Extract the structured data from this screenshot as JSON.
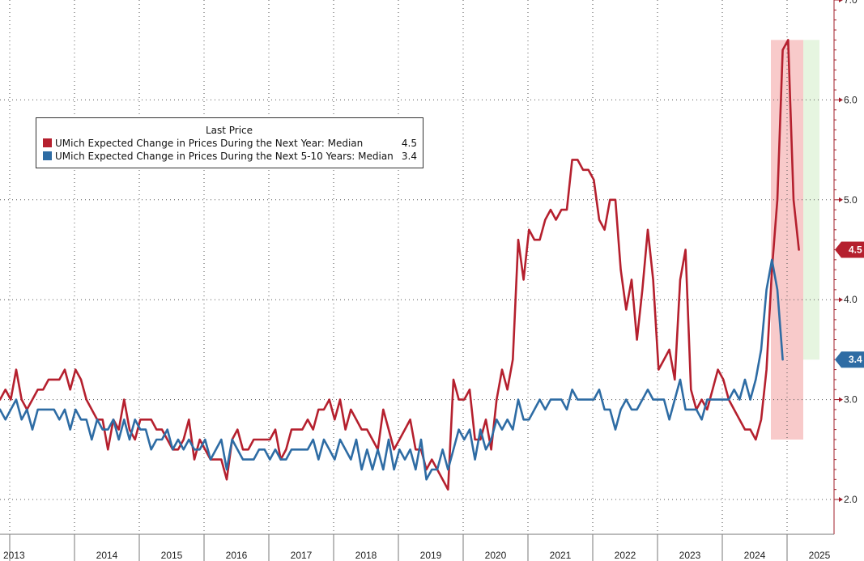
{
  "chart_data": {
    "type": "line",
    "title": "",
    "xlabel": "",
    "ylabel": "",
    "ylim": [
      1.8,
      7.0
    ],
    "y_ticks": [
      {
        "value": 2.0,
        "label": "2.0"
      },
      {
        "value": 3.0,
        "label": "3.0"
      },
      {
        "value": 4.0,
        "label": "4.0"
      },
      {
        "value": 5.0,
        "label": "5.0"
      },
      {
        "value": 6.0,
        "label": "6.0"
      },
      {
        "value": 7.0,
        "label": "7.0"
      }
    ],
    "x_start": 2012.85,
    "x_end": 2025.6,
    "x_labels": [
      "2013",
      "2014",
      "2015",
      "2016",
      "2017",
      "2018",
      "2019",
      "2020",
      "2021",
      "2022",
      "2023",
      "2024",
      "2025"
    ],
    "grid": true,
    "legend": {
      "title": "Last Price",
      "placement": "top-left",
      "entries": [
        {
          "name": "UMich Expected Change in Prices During the Next Year: Median",
          "last": "4.5",
          "color": "#b5202e"
        },
        {
          "name": "UMich Expected Change in Prices During the Next 5-10 Years: Median",
          "last": "3.4",
          "color": "#2e6ca4"
        }
      ]
    },
    "shaded_regions": [
      {
        "from": 2024.75,
        "to": 2025.25,
        "ymin": 2.6,
        "ymax": 6.6,
        "color": "#f6b8b8"
      },
      {
        "from": 2025.25,
        "to": 2025.5,
        "ymin": 3.4,
        "ymax": 6.6,
        "color": "#ddf2d6"
      }
    ],
    "series": [
      {
        "name": "UMich Expected Change in Prices During the Next Year: Median",
        "color": "#b5202e",
        "x_start": 2012.85,
        "step": 0.08333,
        "values": [
          3.0,
          3.1,
          3.0,
          3.3,
          3.0,
          2.9,
          3.0,
          3.1,
          3.1,
          3.2,
          3.2,
          3.2,
          3.3,
          3.1,
          3.3,
          3.2,
          3.0,
          2.9,
          2.8,
          2.8,
          2.5,
          2.8,
          2.7,
          3.0,
          2.7,
          2.6,
          2.8,
          2.8,
          2.8,
          2.7,
          2.7,
          2.6,
          2.5,
          2.5,
          2.6,
          2.8,
          2.4,
          2.6,
          2.5,
          2.4,
          2.4,
          2.4,
          2.2,
          2.6,
          2.7,
          2.5,
          2.5,
          2.6,
          2.6,
          2.6,
          2.6,
          2.7,
          2.4,
          2.5,
          2.7,
          2.7,
          2.7,
          2.8,
          2.7,
          2.9,
          2.9,
          3.0,
          2.8,
          3.0,
          2.7,
          2.9,
          2.8,
          2.7,
          2.7,
          2.6,
          2.5,
          2.9,
          2.7,
          2.5,
          2.6,
          2.7,
          2.8,
          2.5,
          2.5,
          2.3,
          2.4,
          2.3,
          2.2,
          2.1,
          3.2,
          3.0,
          3.0,
          3.1,
          2.6,
          2.6,
          2.8,
          2.5,
          3.0,
          3.3,
          3.1,
          3.4,
          4.6,
          4.2,
          4.7,
          4.6,
          4.6,
          4.8,
          4.9,
          4.8,
          4.9,
          4.9,
          5.4,
          5.4,
          5.3,
          5.3,
          5.2,
          4.8,
          4.7,
          5.0,
          5.0,
          4.3,
          3.9,
          4.2,
          3.6,
          4.1,
          4.7,
          4.2,
          3.3,
          3.4,
          3.5,
          3.2,
          4.2,
          4.5,
          3.1,
          2.9,
          3.0,
          2.9,
          3.1,
          3.3,
          3.2,
          3.0,
          2.9,
          2.8,
          2.7,
          2.7,
          2.6,
          2.8,
          3.3,
          4.3,
          5.0,
          6.5,
          6.6,
          5.0,
          4.5
        ]
      },
      {
        "name": "UMich Expected Change in Prices During the Next 5-10 Years: Median",
        "color": "#2e6ca4",
        "x_start": 2012.85,
        "step": 0.08333,
        "values": [
          2.9,
          2.8,
          2.9,
          3.0,
          2.8,
          2.9,
          2.7,
          2.9,
          2.9,
          2.9,
          2.9,
          2.8,
          2.9,
          2.7,
          2.9,
          2.8,
          2.8,
          2.6,
          2.8,
          2.7,
          2.7,
          2.8,
          2.6,
          2.8,
          2.6,
          2.8,
          2.7,
          2.7,
          2.5,
          2.6,
          2.6,
          2.7,
          2.5,
          2.6,
          2.5,
          2.6,
          2.5,
          2.5,
          2.6,
          2.4,
          2.5,
          2.6,
          2.3,
          2.6,
          2.5,
          2.4,
          2.4,
          2.4,
          2.5,
          2.5,
          2.4,
          2.5,
          2.4,
          2.4,
          2.5,
          2.5,
          2.5,
          2.5,
          2.6,
          2.4,
          2.6,
          2.5,
          2.4,
          2.6,
          2.5,
          2.4,
          2.6,
          2.3,
          2.5,
          2.3,
          2.5,
          2.3,
          2.6,
          2.3,
          2.5,
          2.4,
          2.5,
          2.3,
          2.6,
          2.2,
          2.3,
          2.3,
          2.5,
          2.3,
          2.5,
          2.7,
          2.6,
          2.7,
          2.4,
          2.7,
          2.5,
          2.6,
          2.8,
          2.7,
          2.8,
          2.7,
          3.0,
          2.8,
          2.8,
          2.9,
          3.0,
          2.9,
          3.0,
          3.0,
          3.0,
          2.9,
          3.1,
          3.0,
          3.0,
          3.0,
          3.0,
          3.1,
          2.9,
          2.9,
          2.7,
          2.9,
          3.0,
          2.9,
          2.9,
          3.0,
          3.1,
          3.0,
          3.0,
          3.0,
          2.8,
          3.0,
          3.2,
          2.9,
          2.9,
          2.9,
          2.8,
          3.0,
          3.0,
          3.0,
          3.0,
          3.0,
          3.1,
          3.0,
          3.2,
          3.0,
          3.2,
          3.5,
          4.1,
          4.4,
          4.1,
          3.4
        ]
      }
    ]
  },
  "axis_badges": [
    {
      "label": "4.5",
      "value": 4.5,
      "color": "#b5202e"
    },
    {
      "label": "3.4",
      "value": 3.4,
      "color": "#2e6ca4"
    }
  ]
}
